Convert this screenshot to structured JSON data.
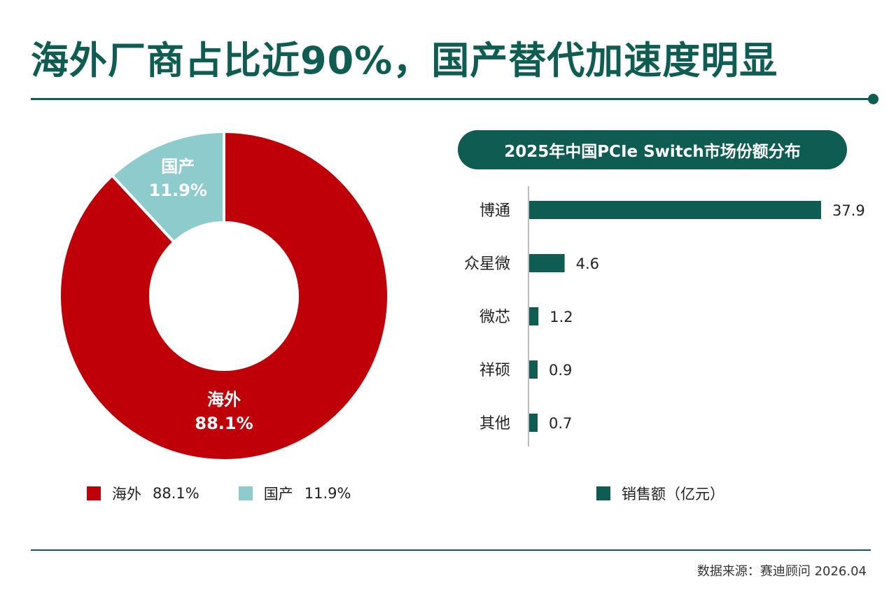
{
  "title": "海外厂商占比近90%，国产替代加速度明显",
  "source": "数据来源：赛迪顾问   2026.04",
  "colors": {
    "overseas": "#c00008",
    "domestic": "#8ecbcc",
    "bar": "#0e5c52",
    "axis": "#bdbdbd"
  },
  "legend_left": [
    {
      "name": "海外",
      "value": "88.1%"
    },
    {
      "name": "国产",
      "value": "11.9%"
    }
  ],
  "legend_right": {
    "name": "销售额（亿元）"
  },
  "chart_data": [
    {
      "type": "pie",
      "variant": "donut",
      "slices": [
        {
          "name": "海外",
          "value": 88.1,
          "label": "88.1%"
        },
        {
          "name": "国产",
          "value": 11.9,
          "label": "11.9%"
        }
      ],
      "legend": "bottom"
    },
    {
      "type": "bar",
      "orientation": "horizontal",
      "title": "2025年中国PCIe Switch市场份额分布",
      "categories": [
        "博通",
        "众星微",
        "微芯",
        "祥硕",
        "其他"
      ],
      "values": [
        37.9,
        4.6,
        1.2,
        0.9,
        0.7
      ],
      "series": [
        {
          "name": "销售额（亿元）",
          "values": [
            37.9,
            4.6,
            1.2,
            0.9,
            0.7
          ]
        }
      ],
      "xlim": [
        0,
        37.9
      ],
      "grid": false,
      "legend": "bottom"
    }
  ]
}
